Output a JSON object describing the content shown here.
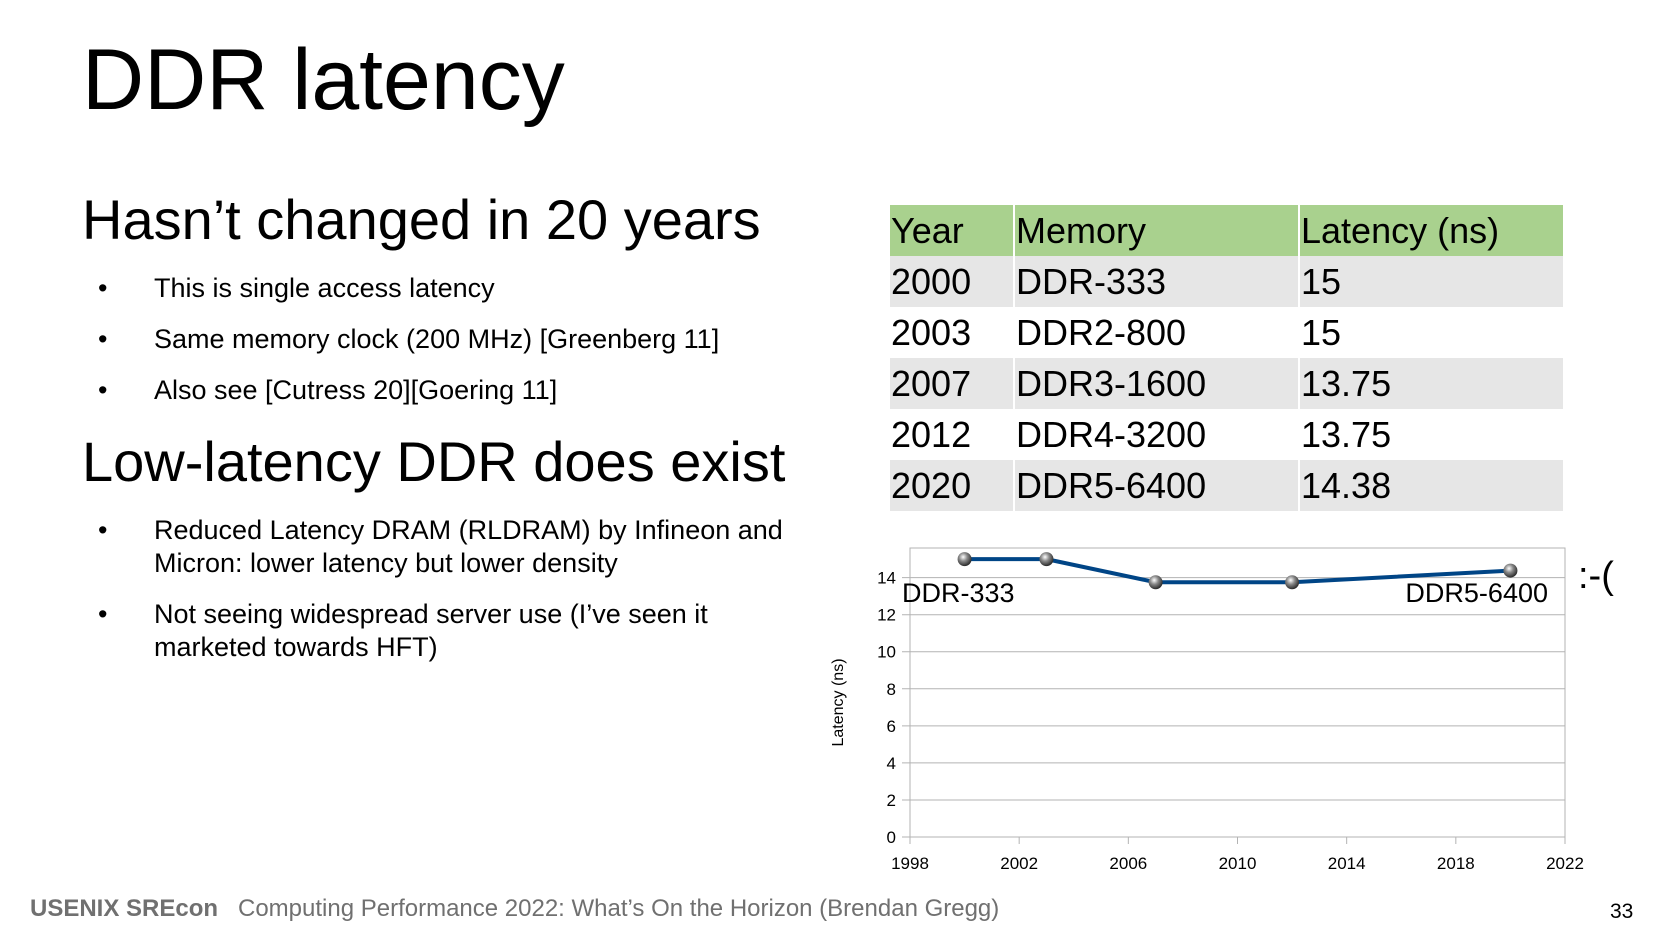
{
  "slide": {
    "title": "DDR latency",
    "sections": [
      {
        "heading": "Hasn’t changed in 20 years",
        "bullets": [
          "This is single access latency",
          "Same memory clock (200 MHz) [Greenberg 11]",
          "Also see [Cutress 20][Goering 11]"
        ]
      },
      {
        "heading": "Low-latency DDR does exist",
        "bullets": [
          "Reduced Latency DRAM (RLDRAM) by Infineon and Micron: lower latency but lower density",
          "Not seeing widespread server use (I’ve seen it marketed towards HFT)"
        ]
      }
    ],
    "bullet_glyph": "•",
    "reaction": ":-(",
    "footer": {
      "brand": "USENIX SREcon",
      "text": "Computing Performance 2022: What’s On the Horizon (Brendan Gregg)"
    },
    "page_number": "33"
  },
  "table": {
    "headers": [
      "Year",
      "Memory",
      "Latency (ns)"
    ],
    "rows": [
      [
        "2000",
        "DDR-333",
        "15"
      ],
      [
        "2003",
        "DDR2-800",
        "15"
      ],
      [
        "2007",
        "DDR3-1600",
        "13.75"
      ],
      [
        "2012",
        "DDR4-3200",
        "13.75"
      ],
      [
        "2020",
        "DDR5-6400",
        "14.38"
      ]
    ],
    "colors": {
      "header_bg": "#a9d18e",
      "odd_row_bg": "#e6e6e6",
      "even_row_bg": "#ffffff"
    }
  },
  "chart_data": {
    "type": "line",
    "title": "",
    "xlabel": "",
    "ylabel": "Latency (ns)",
    "x": [
      2000,
      2003,
      2007,
      2012,
      2020
    ],
    "series": [
      {
        "name": "Latency (ns)",
        "values": [
          15,
          15,
          13.75,
          13.75,
          14.38
        ],
        "color": "#004586"
      }
    ],
    "xlim": [
      1998,
      2022
    ],
    "ylim": [
      0,
      15.6
    ],
    "xticks": [
      1998,
      2002,
      2006,
      2010,
      2014,
      2018,
      2022
    ],
    "yticks": [
      0,
      2,
      4,
      6,
      8,
      10,
      12,
      14
    ],
    "grid": true,
    "legend": "none",
    "annotations": [
      {
        "text": "DDR-333",
        "anchor": "top-left"
      },
      {
        "text": "DDR5-6400",
        "anchor": "top-right"
      }
    ],
    "colors": {
      "gridline": "#b3b3b3",
      "marker": "#666666"
    }
  }
}
